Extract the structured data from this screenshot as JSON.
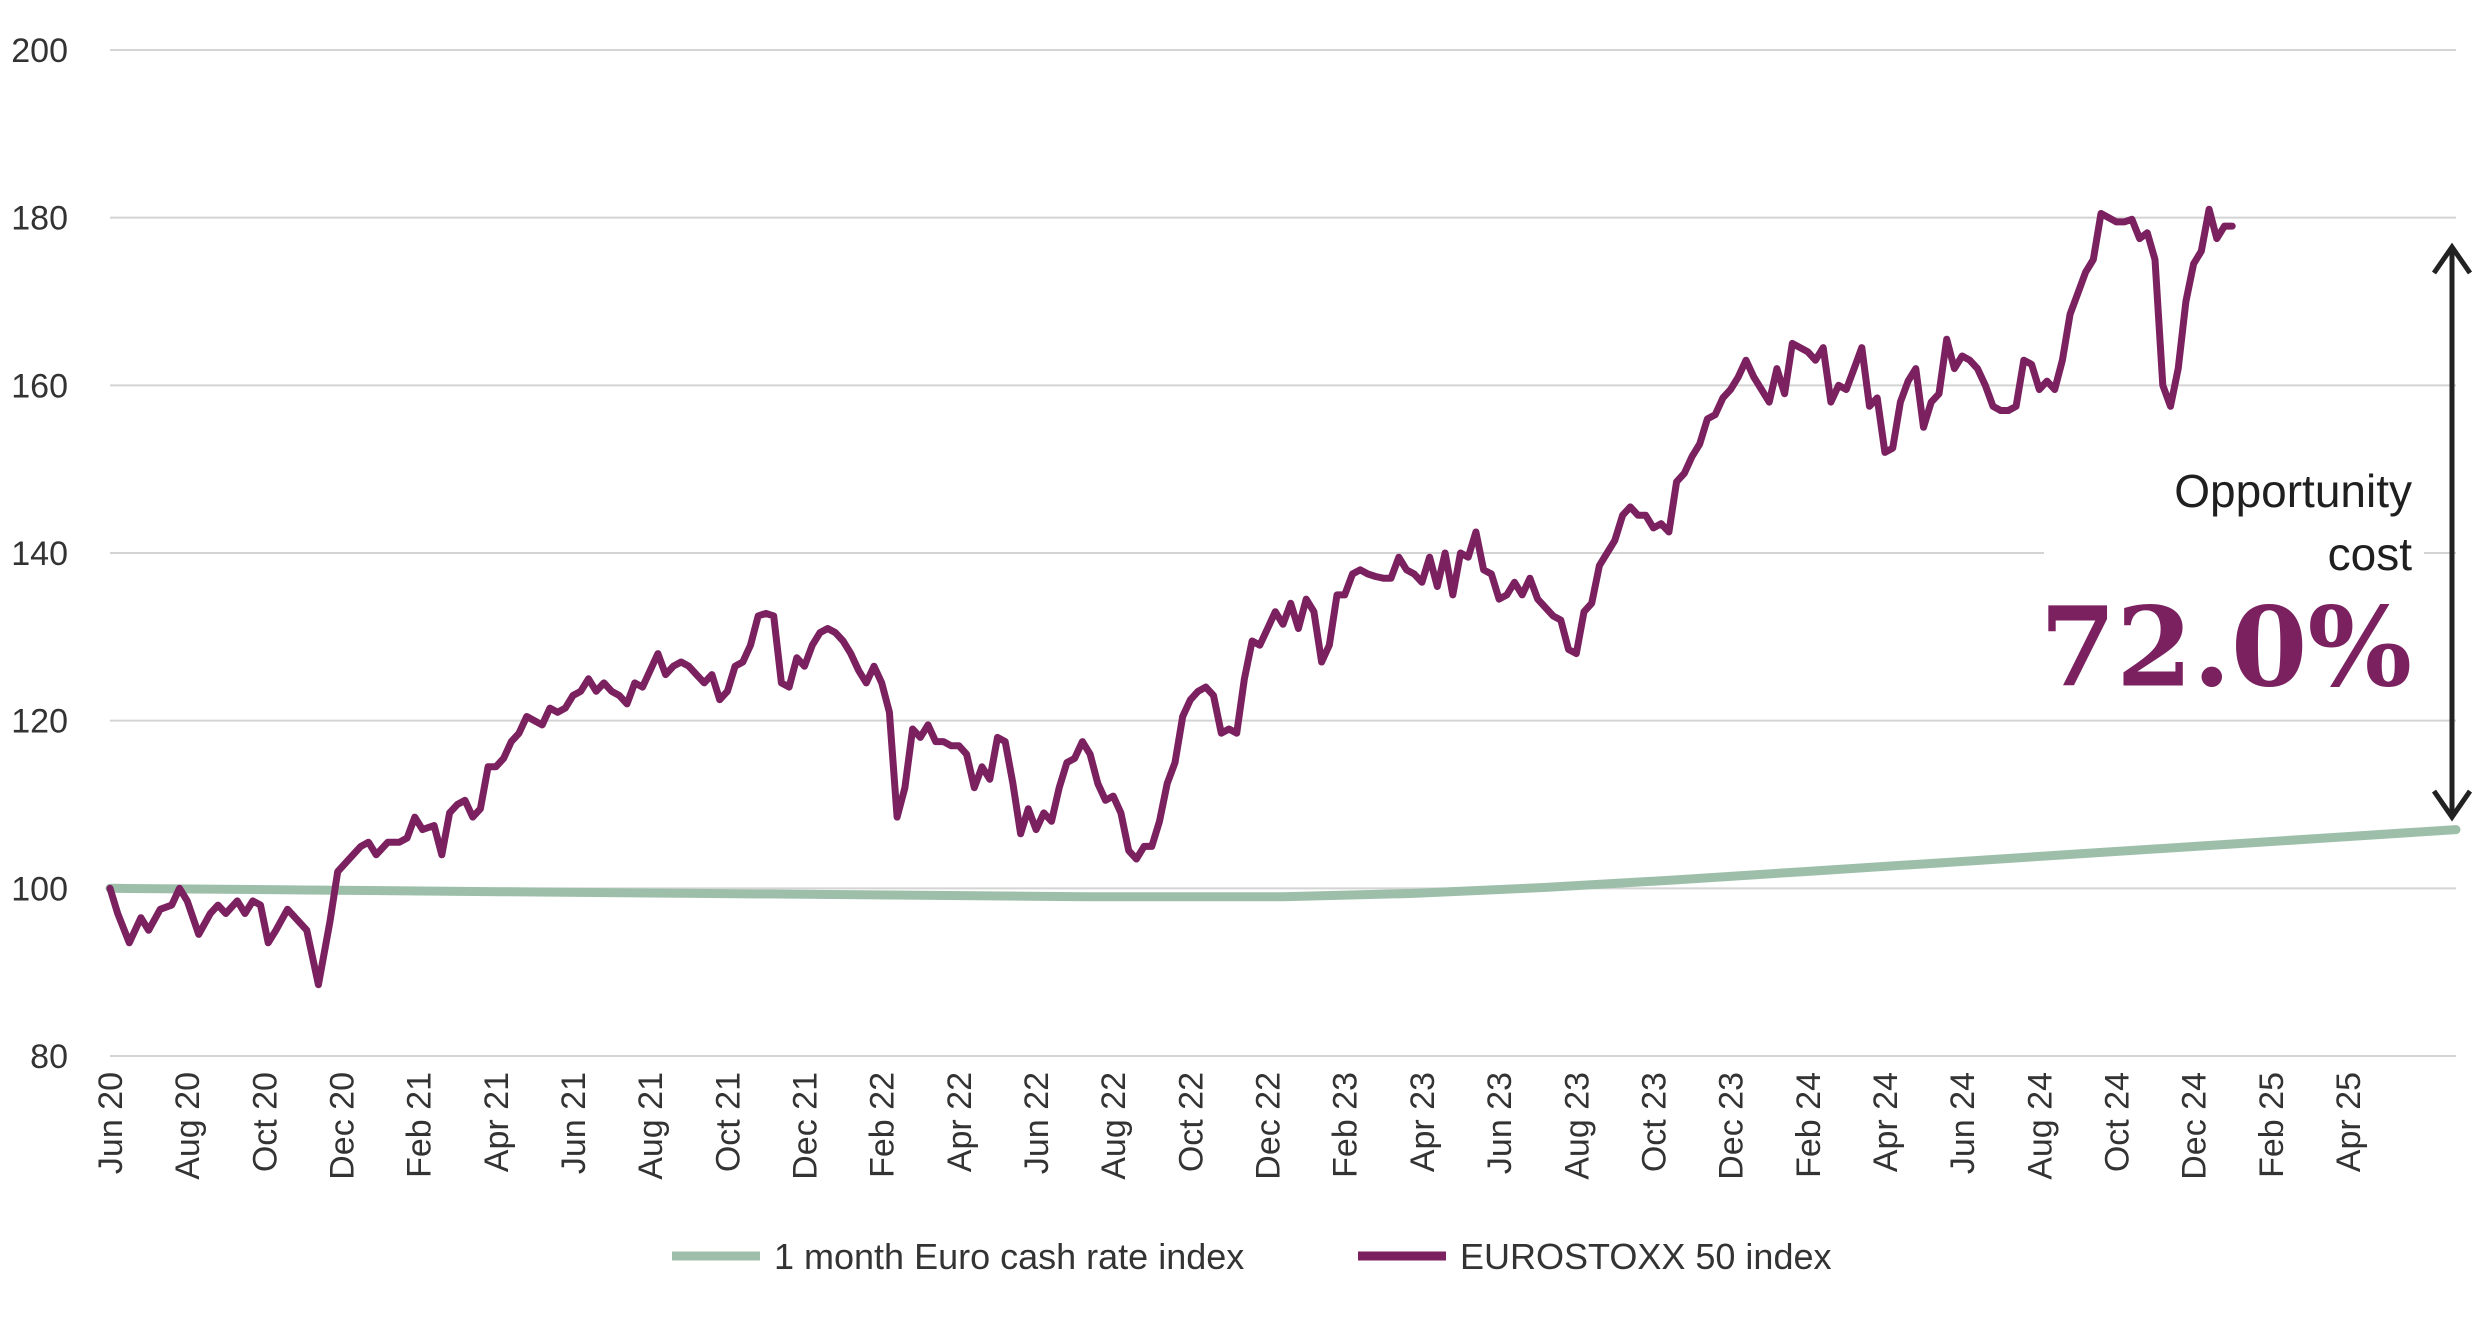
{
  "chart_data": {
    "type": "line",
    "title": "",
    "xlabel": "",
    "ylabel": "",
    "ylim": [
      80,
      200
    ],
    "yticks": [
      80,
      100,
      120,
      140,
      160,
      180,
      200
    ],
    "grid": true,
    "legend_position": "bottom",
    "x_tick_labels": [
      "Jun 20",
      "Aug 20",
      "Oct 20",
      "Dec 20",
      "Feb 21",
      "Apr 21",
      "Jun 21",
      "Aug 21",
      "Oct 21",
      "Dec 21",
      "Feb 22",
      "Apr 22",
      "Jun 22",
      "Aug 22",
      "Oct 22",
      "Dec 22",
      "Feb 23",
      "Apr 23",
      "Jun 23",
      "Aug 23",
      "Oct 23",
      "Dec 23",
      "Feb 24",
      "Apr 24",
      "Jun 24",
      "Aug 24",
      "Oct 24",
      "Dec 24",
      "Feb 25",
      "Apr 25"
    ],
    "x_range_months": [
      0,
      60.8
    ],
    "series": [
      {
        "name": "1 month Euro cash rate index",
        "color": "#9dbfaa",
        "points": [
          [
            0,
            100.0
          ],
          [
            6,
            99.8
          ],
          [
            12,
            99.6
          ],
          [
            18,
            99.4
          ],
          [
            24,
            99.2
          ],
          [
            30,
            99.0
          ],
          [
            36,
            99.0
          ],
          [
            40,
            99.4
          ],
          [
            44,
            100.1
          ],
          [
            48,
            101.0
          ],
          [
            52,
            102.0
          ],
          [
            56,
            103.0
          ],
          [
            60,
            104.0
          ],
          [
            64,
            105.0
          ],
          [
            68,
            106.0
          ],
          [
            72,
            107.0
          ]
        ]
      },
      {
        "name": "EUROSTOXX 50 index",
        "color": "#7b2160",
        "points": [
          [
            0,
            100
          ],
          [
            0.2,
            97
          ],
          [
            0.5,
            93.5
          ],
          [
            0.8,
            96.5
          ],
          [
            1.0,
            95
          ],
          [
            1.3,
            97.5
          ],
          [
            1.6,
            98
          ],
          [
            1.8,
            100
          ],
          [
            2.0,
            98.5
          ],
          [
            2.3,
            94.5
          ],
          [
            2.6,
            97
          ],
          [
            2.8,
            98
          ],
          [
            3.0,
            97
          ],
          [
            3.3,
            98.5
          ],
          [
            3.5,
            97
          ],
          [
            3.7,
            98.5
          ],
          [
            3.9,
            98
          ],
          [
            4.1,
            93.5
          ],
          [
            4.3,
            95
          ],
          [
            4.6,
            97.5
          ],
          [
            4.9,
            96
          ],
          [
            5.1,
            95
          ],
          [
            5.4,
            88.5
          ],
          [
            5.7,
            96
          ],
          [
            5.9,
            102
          ],
          [
            6.2,
            103.5
          ],
          [
            6.5,
            105
          ],
          [
            6.7,
            105.5
          ],
          [
            6.9,
            104
          ],
          [
            7.2,
            105.5
          ],
          [
            7.5,
            105.5
          ],
          [
            7.7,
            106
          ],
          [
            7.9,
            108.5
          ],
          [
            8.1,
            107
          ],
          [
            8.4,
            107.5
          ],
          [
            8.6,
            104
          ],
          [
            8.8,
            109
          ],
          [
            9.0,
            110
          ],
          [
            9.2,
            110.5
          ],
          [
            9.4,
            108.5
          ],
          [
            9.6,
            109.5
          ],
          [
            9.8,
            114.5
          ],
          [
            10.0,
            114.5
          ],
          [
            10.2,
            115.5
          ],
          [
            10.4,
            117.5
          ],
          [
            10.6,
            118.5
          ],
          [
            10.8,
            120.5
          ],
          [
            11.0,
            120
          ],
          [
            11.2,
            119.5
          ],
          [
            11.4,
            121.5
          ],
          [
            11.6,
            121
          ],
          [
            11.8,
            121.5
          ],
          [
            12.0,
            123
          ],
          [
            12.2,
            123.5
          ],
          [
            12.4,
            125
          ],
          [
            12.6,
            123.5
          ],
          [
            12.8,
            124.5
          ],
          [
            13.0,
            123.5
          ],
          [
            13.2,
            123
          ],
          [
            13.4,
            122
          ],
          [
            13.6,
            124.5
          ],
          [
            13.8,
            124
          ],
          [
            14.0,
            126
          ],
          [
            14.2,
            128
          ],
          [
            14.4,
            125.5
          ],
          [
            14.6,
            126.5
          ],
          [
            14.8,
            127
          ],
          [
            15.0,
            126.5
          ],
          [
            15.2,
            125.5
          ],
          [
            15.4,
            124.5
          ],
          [
            15.6,
            125.5
          ],
          [
            15.8,
            122.5
          ],
          [
            16.0,
            123.5
          ],
          [
            16.2,
            126.5
          ],
          [
            16.4,
            127
          ],
          [
            16.6,
            129
          ],
          [
            16.8,
            132.5
          ],
          [
            17.0,
            132.8
          ],
          [
            17.2,
            132.5
          ],
          [
            17.4,
            124.5
          ],
          [
            17.6,
            124
          ],
          [
            17.8,
            127.5
          ],
          [
            18.0,
            126.5
          ],
          [
            18.2,
            129
          ],
          [
            18.4,
            130.5
          ],
          [
            18.6,
            131
          ],
          [
            18.8,
            130.5
          ],
          [
            19.0,
            129.5
          ],
          [
            19.2,
            128
          ],
          [
            19.4,
            126
          ],
          [
            19.6,
            124.5
          ],
          [
            19.8,
            126.5
          ],
          [
            20.0,
            124.5
          ],
          [
            20.2,
            121
          ],
          [
            20.4,
            108.5
          ],
          [
            20.6,
            112
          ],
          [
            20.8,
            119
          ],
          [
            21.0,
            118
          ],
          [
            21.2,
            119.5
          ],
          [
            21.4,
            117.5
          ],
          [
            21.6,
            117.5
          ],
          [
            21.8,
            117
          ],
          [
            22.0,
            117
          ],
          [
            22.2,
            116
          ],
          [
            22.4,
            112
          ],
          [
            22.6,
            114.5
          ],
          [
            22.8,
            113
          ],
          [
            23.0,
            118
          ],
          [
            23.2,
            117.5
          ],
          [
            23.4,
            112.5
          ],
          [
            23.6,
            106.5
          ],
          [
            23.8,
            109.5
          ],
          [
            24.0,
            107
          ],
          [
            24.2,
            109
          ],
          [
            24.4,
            108
          ],
          [
            24.6,
            112
          ],
          [
            24.8,
            115
          ],
          [
            25.0,
            115.5
          ],
          [
            25.2,
            117.5
          ],
          [
            25.4,
            116
          ],
          [
            25.6,
            112.5
          ],
          [
            25.8,
            110.5
          ],
          [
            26.0,
            111
          ],
          [
            26.2,
            109
          ],
          [
            26.4,
            104.5
          ],
          [
            26.6,
            103.5
          ],
          [
            26.8,
            105
          ],
          [
            27.0,
            105
          ],
          [
            27.2,
            108
          ],
          [
            27.4,
            112.5
          ],
          [
            27.6,
            115
          ],
          [
            27.8,
            120.5
          ],
          [
            28.0,
            122.5
          ],
          [
            28.2,
            123.5
          ],
          [
            28.4,
            124
          ],
          [
            28.6,
            123
          ],
          [
            28.8,
            118.5
          ],
          [
            29.0,
            119
          ],
          [
            29.2,
            118.5
          ],
          [
            29.4,
            125
          ],
          [
            29.6,
            129.5
          ],
          [
            29.8,
            129
          ],
          [
            30.0,
            131
          ],
          [
            30.2,
            133
          ],
          [
            30.4,
            131.5
          ],
          [
            30.6,
            134
          ],
          [
            30.8,
            131
          ],
          [
            31.0,
            134.5
          ],
          [
            31.2,
            133
          ],
          [
            31.4,
            127
          ],
          [
            31.6,
            129
          ],
          [
            31.8,
            135
          ],
          [
            32.0,
            135
          ],
          [
            32.2,
            137.5
          ],
          [
            32.4,
            138
          ],
          [
            32.6,
            137.5
          ],
          [
            32.8,
            137.2
          ],
          [
            33.0,
            137
          ],
          [
            33.2,
            137
          ],
          [
            33.4,
            139.5
          ],
          [
            33.6,
            138
          ],
          [
            33.8,
            137.5
          ],
          [
            34.0,
            136.5
          ],
          [
            34.2,
            139.5
          ],
          [
            34.4,
            136
          ],
          [
            34.6,
            140
          ],
          [
            34.8,
            135
          ],
          [
            35.0,
            140
          ],
          [
            35.2,
            139.5
          ],
          [
            35.4,
            142.5
          ],
          [
            35.6,
            138
          ],
          [
            35.8,
            137.5
          ],
          [
            36.0,
            134.5
          ],
          [
            36.2,
            135
          ],
          [
            36.4,
            136.5
          ],
          [
            36.6,
            135
          ],
          [
            36.8,
            137
          ],
          [
            37.0,
            134.5
          ],
          [
            37.2,
            133.5
          ],
          [
            37.4,
            132.5
          ],
          [
            37.6,
            132
          ],
          [
            37.8,
            128.5
          ],
          [
            38.0,
            128
          ],
          [
            38.2,
            133
          ],
          [
            38.4,
            134
          ],
          [
            38.6,
            138.5
          ],
          [
            38.8,
            140
          ],
          [
            39.0,
            141.5
          ],
          [
            39.2,
            144.5
          ],
          [
            39.4,
            145.5
          ],
          [
            39.6,
            144.5
          ],
          [
            39.8,
            144.5
          ],
          [
            40.0,
            143
          ],
          [
            40.2,
            143.5
          ],
          [
            40.4,
            142.5
          ],
          [
            40.6,
            148.5
          ],
          [
            40.8,
            149.5
          ],
          [
            41.0,
            151.5
          ],
          [
            41.2,
            153
          ],
          [
            41.4,
            156
          ],
          [
            41.6,
            156.5
          ],
          [
            41.8,
            158.5
          ],
          [
            42.0,
            159.5
          ],
          [
            42.2,
            161
          ],
          [
            42.4,
            163
          ],
          [
            42.6,
            161
          ],
          [
            42.8,
            159.5
          ],
          [
            43.0,
            158
          ],
          [
            43.2,
            162
          ],
          [
            43.4,
            159
          ],
          [
            43.6,
            165
          ],
          [
            43.8,
            164.5
          ],
          [
            44.0,
            164
          ],
          [
            44.2,
            163
          ],
          [
            44.4,
            164.5
          ],
          [
            44.6,
            158
          ],
          [
            44.8,
            160
          ],
          [
            45.0,
            159.5
          ],
          [
            45.2,
            162
          ],
          [
            45.4,
            164.5
          ],
          [
            45.6,
            157.5
          ],
          [
            45.8,
            158.5
          ],
          [
            46.0,
            152
          ],
          [
            46.2,
            152.5
          ],
          [
            46.4,
            158
          ],
          [
            46.6,
            160.5
          ],
          [
            46.8,
            162
          ],
          [
            47.0,
            155
          ],
          [
            47.2,
            158
          ],
          [
            47.4,
            159
          ],
          [
            47.6,
            165.5
          ],
          [
            47.8,
            162
          ],
          [
            48.0,
            163.5
          ],
          [
            48.2,
            163
          ],
          [
            48.4,
            162
          ],
          [
            48.6,
            160
          ],
          [
            48.8,
            157.5
          ],
          [
            49.0,
            157
          ],
          [
            49.2,
            157
          ],
          [
            49.4,
            157.5
          ],
          [
            49.6,
            163
          ],
          [
            49.8,
            162.5
          ],
          [
            50.0,
            159.5
          ],
          [
            50.2,
            160.5
          ],
          [
            50.4,
            159.5
          ],
          [
            50.6,
            163
          ],
          [
            50.8,
            168.5
          ],
          [
            51.0,
            171
          ],
          [
            51.2,
            173.5
          ],
          [
            51.4,
            175
          ],
          [
            51.6,
            180.5
          ],
          [
            51.8,
            180
          ],
          [
            52.0,
            179.5
          ],
          [
            52.2,
            179.5
          ],
          [
            52.4,
            179.8
          ],
          [
            52.6,
            177.5
          ],
          [
            52.8,
            178.2
          ],
          [
            53.0,
            175
          ],
          [
            53.2,
            160
          ],
          [
            53.4,
            157.5
          ],
          [
            53.6,
            162
          ],
          [
            53.8,
            170
          ],
          [
            54.0,
            174.5
          ],
          [
            54.2,
            176
          ],
          [
            54.4,
            181
          ],
          [
            54.6,
            177.5
          ],
          [
            54.8,
            179
          ],
          [
            55.0,
            179
          ]
        ]
      }
    ],
    "annotation": {
      "label_line1": "Opportunity",
      "label_line2": "cost",
      "value": "72.0%",
      "value_color": "#7b2160"
    }
  }
}
